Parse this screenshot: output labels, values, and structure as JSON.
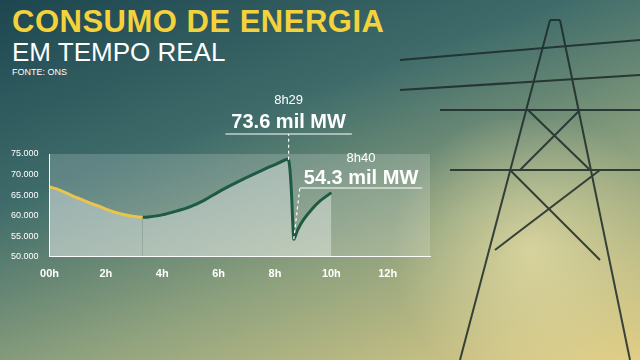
{
  "chart_data": {
    "type": "line",
    "title": "CONSUMO DE ENERGIA",
    "subtitle": "EM TEMPO REAL",
    "source": "FONTE: ONS",
    "series": [
      {
        "color": "#e9c54c",
        "x": [
          0,
          0.25,
          0.5,
          0.75,
          1,
          1.25,
          1.5,
          1.75,
          2,
          2.25,
          2.5,
          2.75,
          3,
          3.3
        ],
        "values": [
          67000,
          66500,
          65800,
          65000,
          64300,
          63600,
          62900,
          62300,
          61600,
          61000,
          60500,
          60100,
          59800,
          59600
        ]
      },
      {
        "color": "#1f5a45",
        "x": [
          3.3,
          3.5,
          4,
          4.5,
          5,
          5.5,
          6,
          6.5,
          7,
          7.5,
          8,
          8.483,
          8.667,
          8.8,
          9,
          9.3,
          9.6,
          10
        ],
        "values": [
          59600,
          59700,
          60200,
          61100,
          62200,
          63800,
          65800,
          67600,
          69300,
          70900,
          72400,
          73600,
          54300,
          56500,
          58900,
          61500,
          63600,
          65600
        ]
      }
    ],
    "xlim": [
      0,
      13.5
    ],
    "xticks": [
      {
        "value": 0,
        "label": "00h"
      },
      {
        "value": 2,
        "label": "2h"
      },
      {
        "value": 4,
        "label": "4h"
      },
      {
        "value": 6,
        "label": "6h"
      },
      {
        "value": 8,
        "label": "8h"
      },
      {
        "value": 10,
        "label": "10h"
      },
      {
        "value": 12,
        "label": "12h"
      }
    ],
    "ylim": [
      50000,
      75000
    ],
    "yticks": [
      {
        "value": 50000,
        "label": "50.000"
      },
      {
        "value": 55000,
        "label": "55.000"
      },
      {
        "value": 60000,
        "label": "60.000"
      },
      {
        "value": 65000,
        "label": "65.000"
      },
      {
        "value": 70000,
        "label": "70.000"
      },
      {
        "value": 75000,
        "label": "75.000"
      }
    ],
    "grid": false,
    "annotations": [
      {
        "x": 8.483,
        "y": 73600,
        "time": "8h29",
        "label": "73.6 mil MW"
      },
      {
        "x": 8.667,
        "y": 54300,
        "time": "8h40",
        "label": "54.3 mil MW"
      }
    ]
  }
}
